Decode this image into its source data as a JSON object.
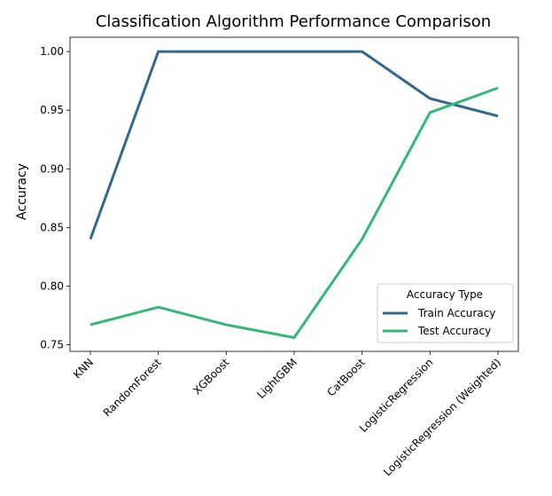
{
  "chart_data": {
    "type": "line",
    "title": "Classification Algorithm Performance Comparison",
    "xlabel": "",
    "ylabel": "Accuracy",
    "categories": [
      "KNN",
      "RandomForest",
      "XGBoost",
      "LightGBM",
      "CatBoost",
      "LogisticRegression",
      "LogisticRegression (Weighted)"
    ],
    "series": [
      {
        "name": "Train Accuracy",
        "color": "#31688e",
        "values": [
          0.84,
          1.0,
          1.0,
          1.0,
          1.0,
          0.96,
          0.945
        ]
      },
      {
        "name": "Test Accuracy",
        "color": "#35b779",
        "values": [
          0.767,
          0.782,
          0.767,
          0.756,
          0.84,
          0.948,
          0.969
        ]
      }
    ],
    "yticks": [
      "0.75",
      "0.80",
      "0.85",
      "0.90",
      "0.95",
      "1.00"
    ],
    "ylim": [
      0.7443,
      1.0122
    ],
    "grid": false,
    "legend": {
      "title": "Accuracy Type",
      "placement": "lower-right"
    }
  }
}
